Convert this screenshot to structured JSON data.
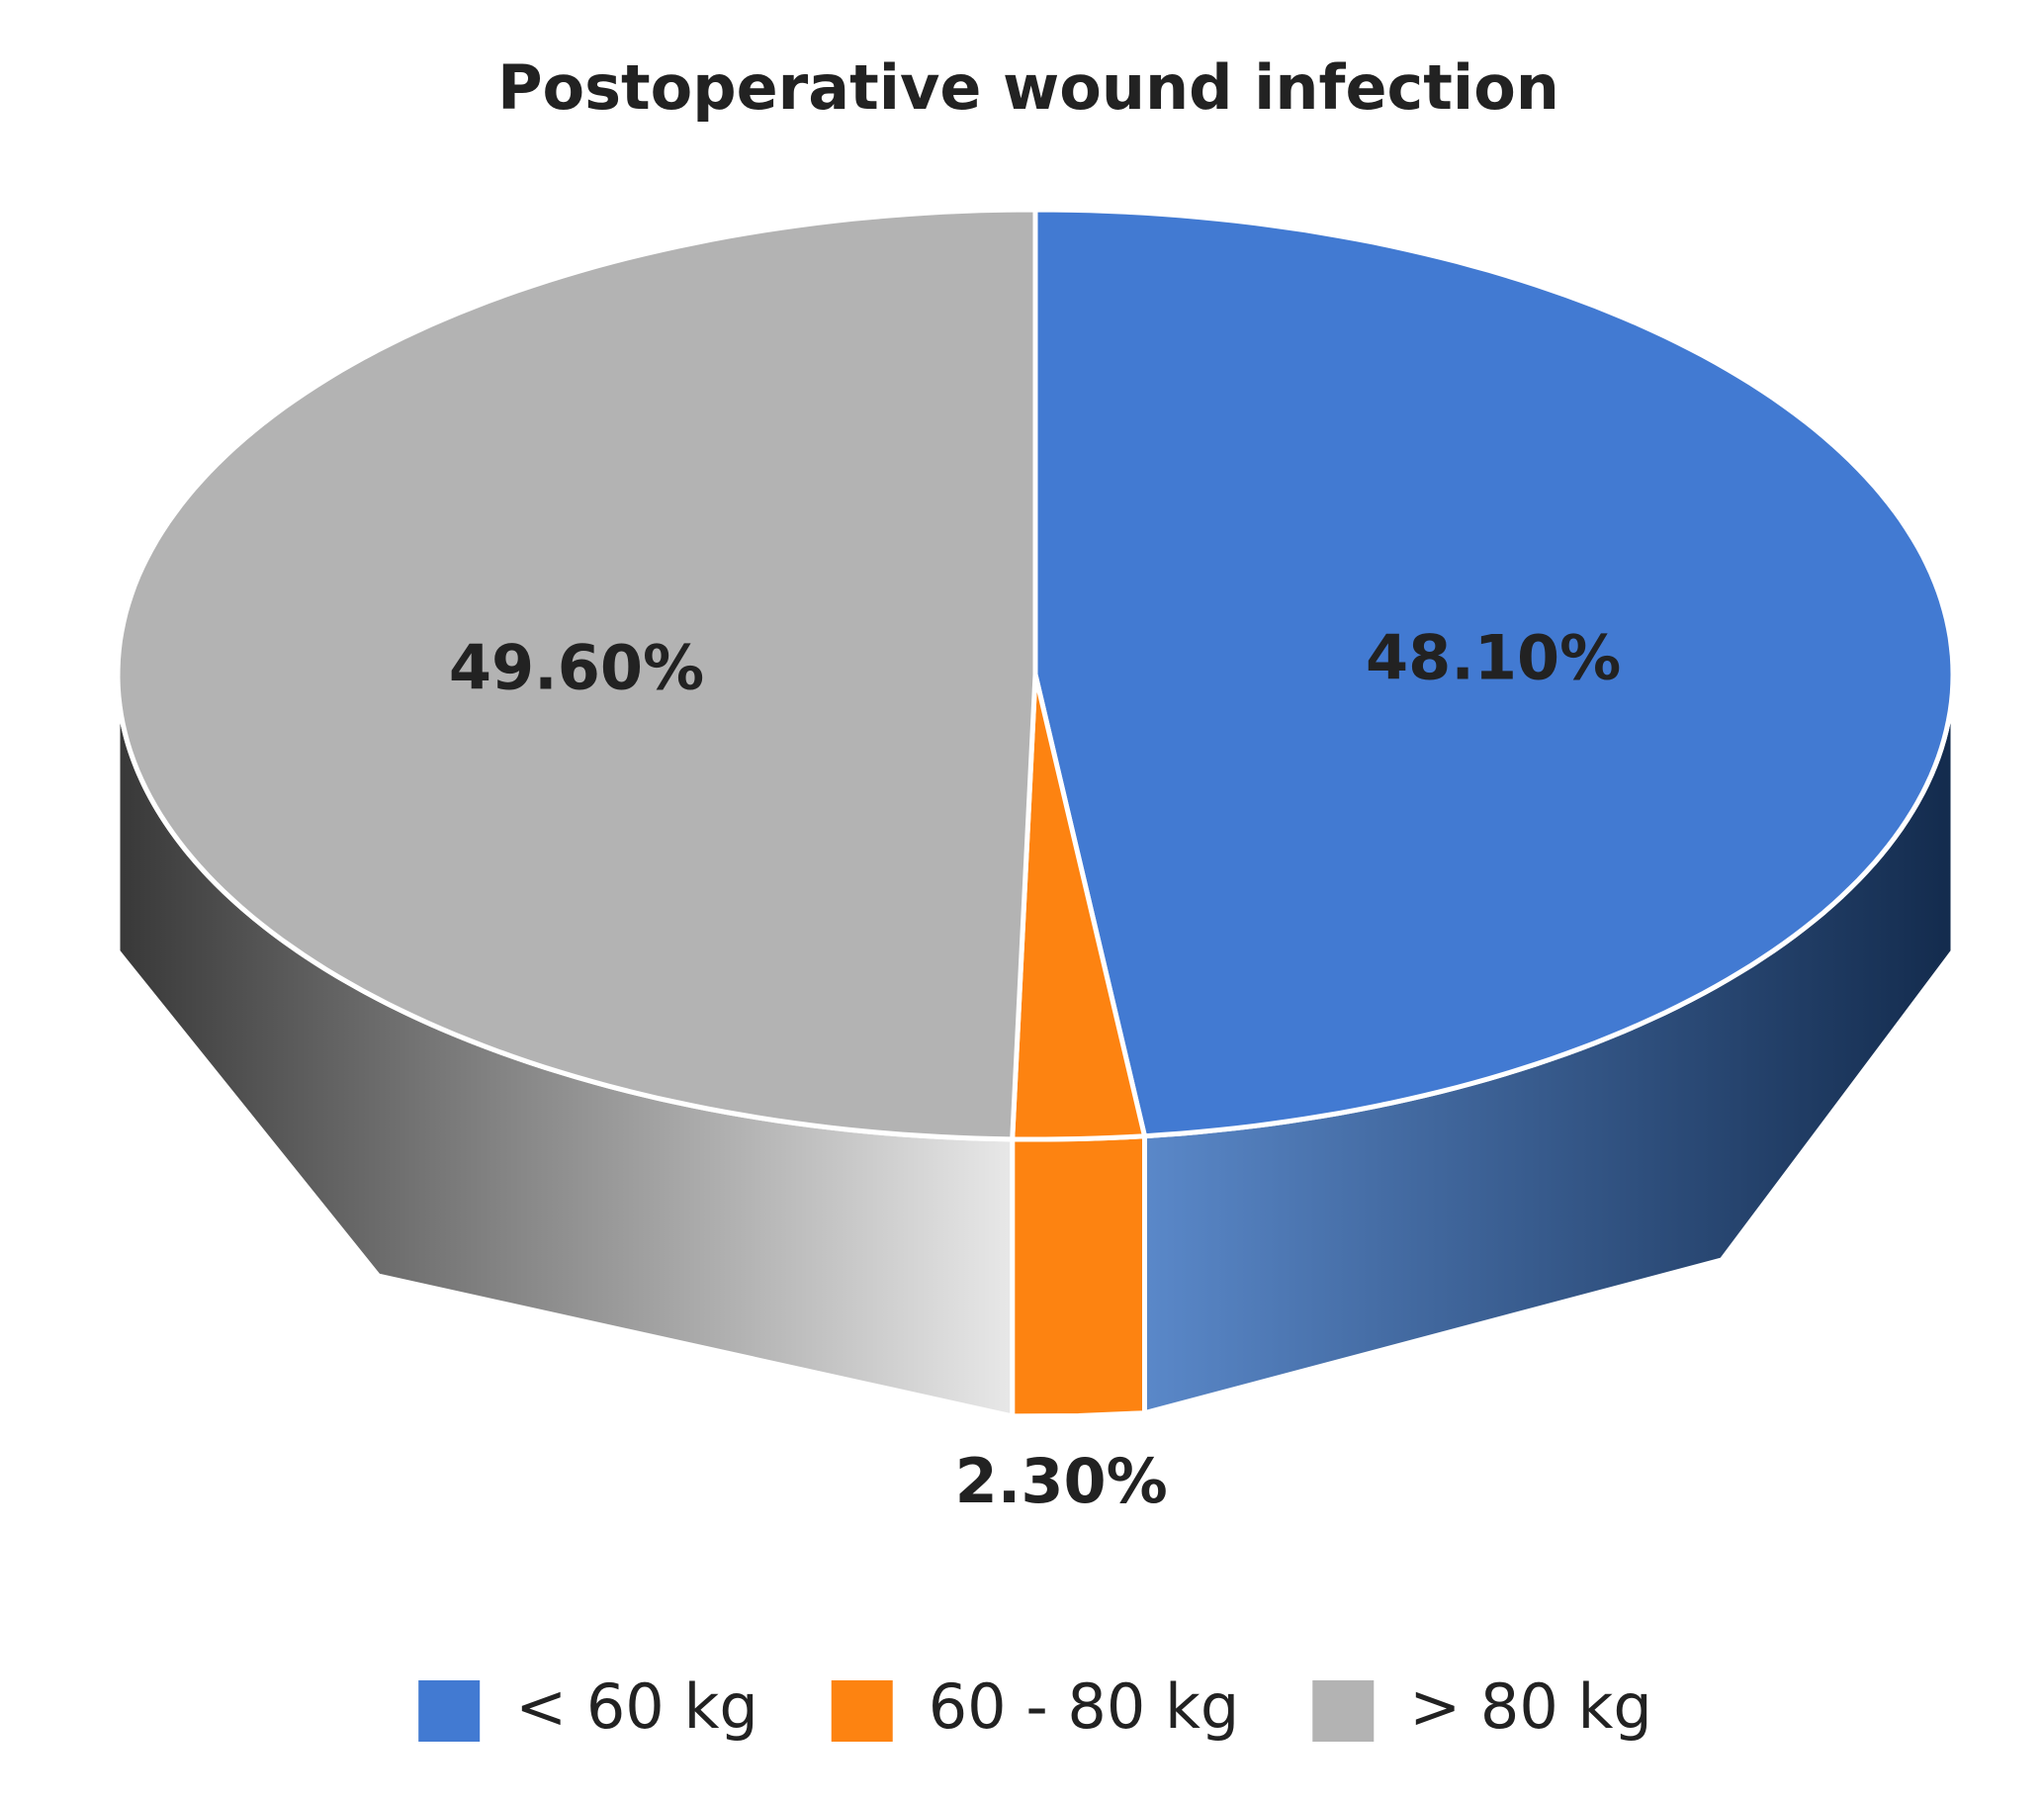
{
  "chart_data": {
    "type": "pie3d",
    "title": "Postoperative wound infection",
    "categories": [
      "< 60 kg",
      "60 - 80 kg",
      "> 80 kg"
    ],
    "values": [
      48.1,
      2.3,
      49.6
    ],
    "value_labels": [
      "48.10%",
      "2.30%",
      "49.60%"
    ],
    "colors": [
      "#427ad2",
      "#fd8311",
      "#b3b3b3"
    ],
    "legend": "bottom"
  }
}
